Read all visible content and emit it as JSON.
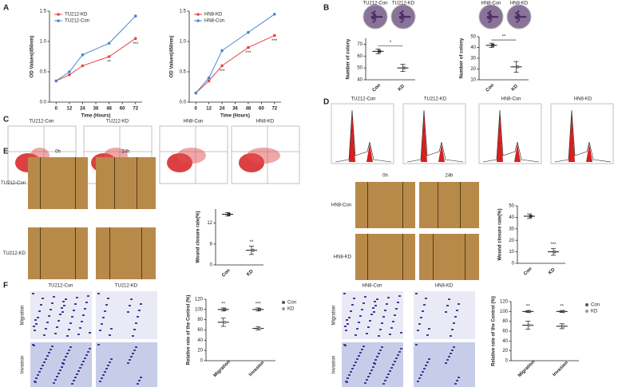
{
  "panel_letters": [
    "A",
    "B",
    "C",
    "D",
    "E",
    "F"
  ],
  "images": {
    "B": [
      "TU212-Con",
      "TU212-KD",
      "HN8-Con",
      "HN8-KD"
    ],
    "C": [
      "TU212-Con",
      "TU212-KD",
      "HN8-Con",
      "HN8-KD"
    ],
    "D": [
      "TU212-Con",
      "TU212-KD",
      "HN8-Con",
      "HN8-KD"
    ],
    "E": {
      "times_left": [
        "0h",
        "24h"
      ],
      "rows_left": [
        "TU212-Con",
        "TU212-KD"
      ],
      "times_right": [
        "0h",
        "24h"
      ],
      "rows_right": [
        "HN8-Con",
        "HN8-KD"
      ]
    },
    "F": {
      "cols_left": [
        "TU212-Con",
        "TU212-KD"
      ],
      "rows_left": [
        "Migration",
        "Invasion"
      ],
      "cols_right": [
        "HN8-Con",
        "HN8-KD"
      ],
      "rows_right": [
        "Migration",
        "Invasion"
      ]
    }
  },
  "chart_data": [
    {
      "type": "line",
      "xlabel": "Time (Hours)",
      "ylabel": "OD Values(450nm)",
      "x": [
        0,
        12,
        24,
        48,
        72
      ],
      "xlim": [
        -6,
        78
      ],
      "xticks": [
        0,
        12,
        24,
        36,
        48,
        60,
        72
      ],
      "ylim": [
        0,
        1.5
      ],
      "yticks": [
        {
          "value": 0,
          "label": "0.0"
        },
        0.5,
        {
          "value": 1,
          "label": "1.0"
        },
        1.5
      ],
      "series": [
        {
          "name": "TU212-KD",
          "color": "#e0474c",
          "values": [
            0.35,
            0.45,
            0.6,
            0.75,
            1.05
          ],
          "significance": [
            null,
            null,
            null,
            "**",
            "***"
          ]
        },
        {
          "name": "TU212-Con",
          "color": "#4a86d0",
          "values": [
            0.35,
            0.5,
            0.78,
            0.97,
            1.42
          ],
          "significance": [
            null,
            null,
            null,
            null,
            null
          ]
        }
      ]
    },
    {
      "type": "line",
      "xlabel": "Time (Hours)",
      "ylabel": "OD Values(450nm)",
      "x": [
        0,
        12,
        24,
        48,
        72
      ],
      "xlim": [
        -6,
        78
      ],
      "xticks": [
        0,
        12,
        24,
        36,
        48,
        60,
        72
      ],
      "ylim": [
        0,
        1.5
      ],
      "yticks": [
        {
          "value": 0,
          "label": "0.0"
        },
        0.5,
        {
          "value": 1,
          "label": "1.0"
        },
        1.5
      ],
      "series": [
        {
          "name": "HN8-KD",
          "color": "#e0474c",
          "values": [
            0.15,
            0.35,
            0.6,
            0.9,
            1.1
          ],
          "significance": [
            null,
            null,
            "***",
            "***",
            "***"
          ]
        },
        {
          "name": "HN8-Con",
          "color": "#4a86d0",
          "values": [
            0.15,
            0.4,
            0.85,
            1.15,
            1.45
          ],
          "significance": [
            null,
            null,
            null,
            null,
            null
          ]
        }
      ]
    },
    {
      "type": "dot",
      "ylabel": "Number of colony",
      "categories": [
        "Con",
        "KD"
      ],
      "values": [
        64,
        50
      ],
      "errors": [
        2,
        3
      ],
      "colors": [
        "#333333",
        "#777777"
      ],
      "significance": "*",
      "ylim": [
        40,
        75
      ],
      "yticks": [
        40,
        50,
        60,
        70
      ]
    },
    {
      "type": "dot",
      "ylabel": "Number of colony",
      "categories": [
        "Con",
        "KD"
      ],
      "values": [
        42,
        22
      ],
      "errors": [
        2,
        5
      ],
      "colors": [
        "#333333",
        "#777777"
      ],
      "significance": "**",
      "ylim": [
        10,
        50
      ],
      "yticks": [
        10,
        20,
        30,
        40,
        50
      ]
    },
    {
      "type": "dot",
      "ylabel": "Wound closure rate(%)",
      "categories": [
        "Con",
        "KD"
      ],
      "values": [
        14.5,
        4.2
      ],
      "errors": [
        0.5,
        1.2
      ],
      "colors": [
        "#333333",
        "#777777"
      ],
      "significance": "**",
      "ylim": [
        0,
        16
      ],
      "yticks": [
        0,
        6,
        12
      ]
    },
    {
      "type": "dot",
      "ylabel": "Wound closure rate(%)",
      "categories": [
        "Con",
        "KD"
      ],
      "values": [
        41,
        10
      ],
      "errors": [
        2,
        3
      ],
      "colors": [
        "#333333",
        "#777777"
      ],
      "significance": "***",
      "ylim": [
        0,
        50
      ],
      "yticks": [
        0,
        10,
        20,
        30,
        40,
        50
      ]
    },
    {
      "type": "dot",
      "ylabel": "Relative rate of the Control (%)",
      "categories": [
        "Migration",
        "Invasion"
      ],
      "series": [
        {
          "name": "Con",
          "color": "#555555",
          "values": [
            100,
            100
          ],
          "errors": [
            3,
            3
          ]
        },
        {
          "name": "KD",
          "color": "#999999",
          "values": [
            75,
            63
          ],
          "errors": [
            8,
            3
          ]
        }
      ],
      "significance": [
        "**",
        "***"
      ],
      "ylim": [
        0,
        120
      ],
      "yticks": [
        0,
        20,
        40,
        60,
        80,
        100,
        120
      ]
    },
    {
      "type": "dot",
      "ylabel": "Relative rate of the Control (%)",
      "categories": [
        "Migration",
        "Invasion"
      ],
      "series": [
        {
          "name": "Con",
          "color": "#555555",
          "values": [
            100,
            100
          ],
          "errors": [
            2,
            2
          ]
        },
        {
          "name": "KD",
          "color": "#999999",
          "values": [
            72,
            70
          ],
          "errors": [
            8,
            5
          ]
        }
      ],
      "significance": [
        "**",
        "**"
      ],
      "ylim": [
        0,
        120
      ],
      "yticks": [
        0,
        20,
        40,
        60,
        80,
        100,
        120
      ]
    }
  ]
}
